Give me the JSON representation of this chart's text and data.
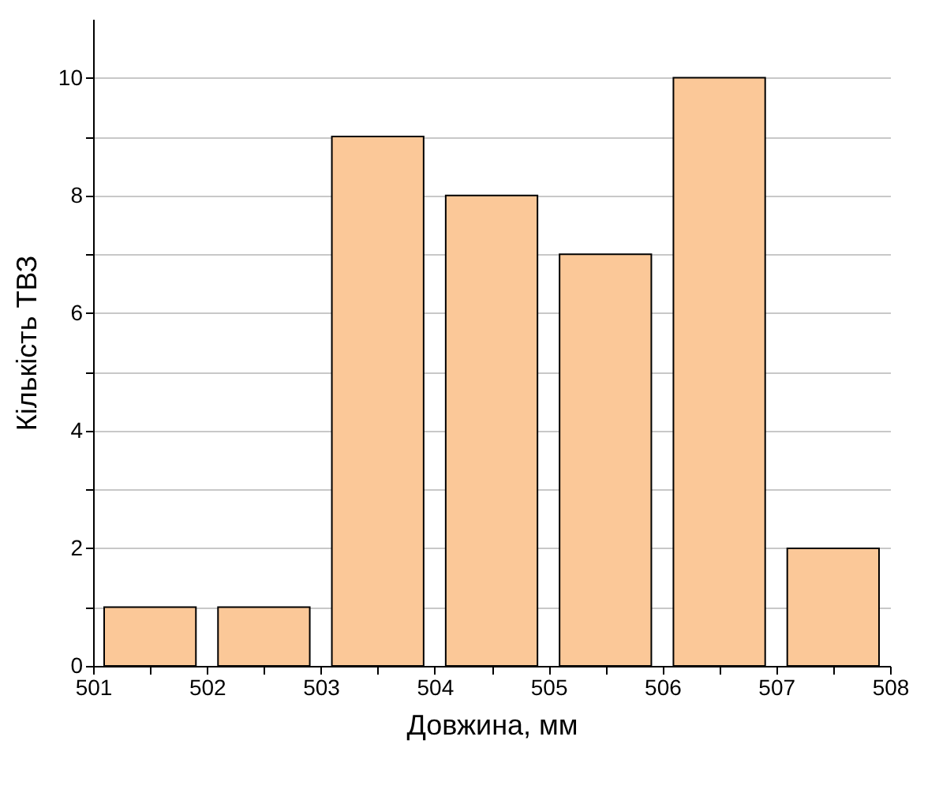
{
  "chart_data": {
    "type": "histogram",
    "xlabel": "Довжина, мм",
    "ylabel": "Кількість ТВЗ",
    "bins": [
      501,
      502,
      503,
      504,
      505,
      506,
      507,
      508
    ],
    "values": [
      1,
      1,
      9,
      8,
      7,
      10,
      2
    ],
    "color": "#fbc898",
    "xlim": [
      501,
      508
    ],
    "xticks": [
      501,
      {
        "value": 501.5,
        "label": null
      },
      502,
      {
        "value": 502.5,
        "label": null
      },
      503,
      {
        "value": 503.5,
        "label": null
      },
      504,
      {
        "value": 504.5,
        "label": null
      },
      505,
      {
        "value": 505.5,
        "label": null
      },
      506,
      {
        "value": 506.5,
        "label": null
      },
      507,
      {
        "value": 507.5,
        "label": null
      },
      508
    ],
    "ylim": [
      0,
      11
    ],
    "yticks": [
      0,
      {
        "value": 1,
        "label": null
      },
      2,
      {
        "value": 3,
        "label": null
      },
      4,
      {
        "value": 5,
        "label": null
      },
      6,
      {
        "value": 7,
        "label": null
      },
      8,
      {
        "value": 9,
        "label": null
      },
      10
    ],
    "grid": "y"
  }
}
